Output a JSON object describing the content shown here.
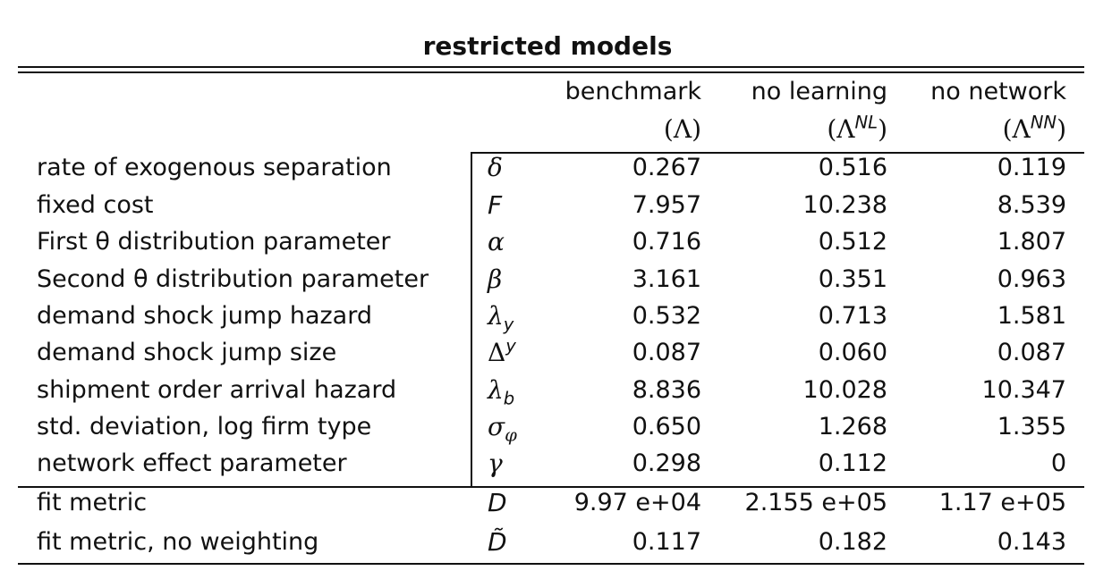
{
  "title": "restricted models",
  "columns": [
    {
      "name": "benchmark",
      "symbol": "(Λ)",
      "symbol_base": "(Λ",
      "symbol_sup": "",
      "symbol_close": ")"
    },
    {
      "name": "no learning",
      "symbol": "(Λ^NL)",
      "symbol_base": "(Λ",
      "symbol_sup": "NL",
      "symbol_close": ")"
    },
    {
      "name": "no network",
      "symbol": "(Λ^NN)",
      "symbol_base": "(Λ",
      "symbol_sup": "NN",
      "symbol_close": ")"
    }
  ],
  "rows": [
    {
      "label": "rate of exogenous separation",
      "symbol": "δ",
      "sym_sub": "",
      "sym_sup": "",
      "values": [
        "0.267",
        "0.516",
        "0.119"
      ]
    },
    {
      "label": "fixed cost",
      "symbol": "F",
      "sym_sub": "",
      "sym_sup": "",
      "values": [
        "7.957",
        "10.238",
        "8.539"
      ]
    },
    {
      "label": "First θ distribution parameter",
      "symbol": "α",
      "sym_sub": "",
      "sym_sup": "",
      "values": [
        "0.716",
        "0.512",
        "1.807"
      ]
    },
    {
      "label": "Second θ distribution parameter",
      "symbol": "β",
      "sym_sub": "",
      "sym_sup": "",
      "values": [
        "3.161",
        "0.351",
        "0.963"
      ]
    },
    {
      "label": "demand shock jump hazard",
      "symbol": "λ",
      "sym_sub": "y",
      "sym_sup": "",
      "values": [
        "0.532",
        "0.713",
        "1.581"
      ]
    },
    {
      "label": "demand shock jump size",
      "symbol": "Δ",
      "sym_sub": "",
      "sym_sup": "y",
      "values": [
        "0.087",
        "0.060",
        "0.087"
      ]
    },
    {
      "label": "shipment order arrival hazard",
      "symbol": "λ",
      "sym_sub": "b",
      "sym_sup": "",
      "values": [
        "8.836",
        "10.028",
        "10.347"
      ]
    },
    {
      "label": "std. deviation, log firm type",
      "symbol": "σ",
      "sym_sub": "φ",
      "sym_sup": "",
      "values": [
        "0.650",
        "1.268",
        "1.355"
      ]
    },
    {
      "label": "network effect parameter",
      "symbol": "γ",
      "sym_sub": "",
      "sym_sup": "",
      "values": [
        "0.298",
        "0.112",
        "0"
      ]
    },
    {
      "label": "fit metric",
      "symbol": "D",
      "sym_sub": "",
      "sym_sup": "",
      "values": [
        "9.97 e+04",
        "2.155 e+05",
        "1.17 e+05"
      ]
    },
    {
      "label": "fit metric, no weighting",
      "symbol": "D̃",
      "sym_sub": "",
      "sym_sup": "",
      "values": [
        "0.117",
        "0.182",
        "0.143"
      ]
    }
  ]
}
